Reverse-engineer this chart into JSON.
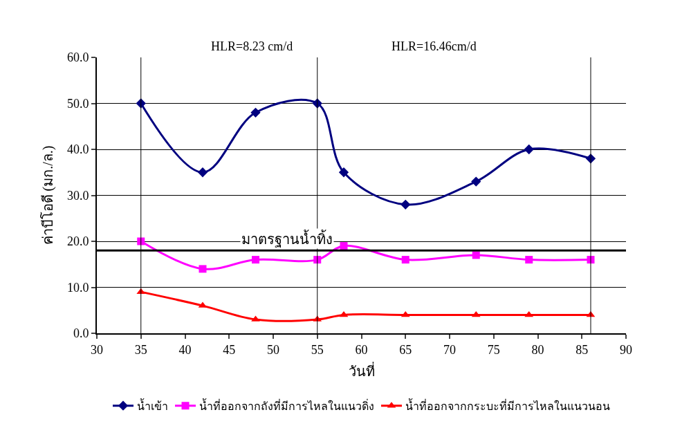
{
  "chart_data": {
    "type": "line",
    "xlabel": "วันที่",
    "ylabel": "ค่าบีโอดี (มก./ล.)",
    "x": [
      35,
      42,
      48,
      55,
      58,
      65,
      73,
      79,
      86
    ],
    "series": [
      {
        "name": "น้ำเข้า",
        "color": "#000080",
        "marker": "diamond",
        "values": [
          50,
          35,
          48,
          50,
          35,
          28,
          33,
          40,
          38
        ]
      },
      {
        "name": "น้ำที่ออกจากถังที่มีการไหลในแนวดิ่ง",
        "color": "#ff00ff",
        "marker": "square",
        "values": [
          20,
          14,
          16,
          16,
          19,
          16,
          17,
          16,
          16
        ]
      },
      {
        "name": "น้ำที่ออกจากกระบะที่มีการไหลในแนวนอน",
        "color": "#ff0000",
        "marker": "triangle",
        "values": [
          9,
          6,
          3,
          3,
          4,
          4,
          4,
          4,
          4
        ]
      }
    ],
    "xlim": [
      30,
      90
    ],
    "xticks": [
      30,
      35,
      40,
      45,
      50,
      55,
      60,
      65,
      70,
      75,
      80,
      85,
      90
    ],
    "ylim": [
      0,
      60
    ],
    "yticks": [
      {
        "value": 0,
        "label": "0.0"
      },
      {
        "value": 10,
        "label": "10.0"
      },
      {
        "value": 20,
        "label": "20.0"
      },
      {
        "value": 30,
        "label": "30.0"
      },
      {
        "value": 40,
        "label": "40.0"
      },
      {
        "value": 50,
        "label": "50.0"
      },
      {
        "value": 60,
        "label": "60.0"
      }
    ],
    "ref_lines": [
      {
        "axis": "y",
        "value": 18,
        "label": "มาตรฐานน้ำทิ้ง",
        "color": "#000000"
      },
      {
        "axis": "x",
        "value": 35,
        "color": "#000000"
      },
      {
        "axis": "x",
        "value": 55,
        "color": "#000000"
      },
      {
        "axis": "x",
        "value": 86,
        "color": "#000000"
      }
    ],
    "annotations": [
      "HLR=8.23 cm/d",
      "HLR=16.46cm/d"
    ],
    "grid": "y",
    "legend": "bottom"
  }
}
